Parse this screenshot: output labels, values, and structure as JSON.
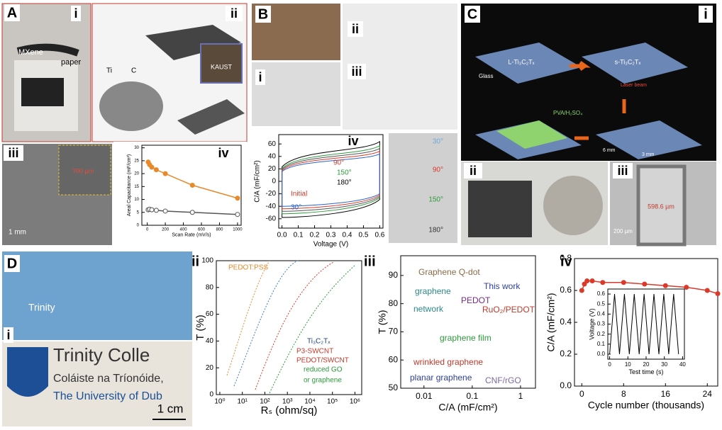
{
  "panels": {
    "A": {
      "label": "A",
      "i": "i",
      "ii": "ii",
      "iii": "iii",
      "iv": "iv",
      "mxene": "MXene",
      "paper": "paper",
      "ti": "Ti",
      "c": "C",
      "kaust": "KAUST",
      "scale": "1 mm",
      "sem": "700 µm",
      "chart": {
        "ylabel": "Areal Capacitance (mF/cm²)",
        "xlabel": "Scan Rate (mV/s)",
        "xlim": [
          -60,
          1040
        ],
        "ylim": [
          0,
          31
        ],
        "xticks": [
          0,
          200,
          400,
          600,
          800,
          1000
        ],
        "yticks": [
          0,
          5,
          10,
          15,
          20,
          25,
          30
        ],
        "series": [
          {
            "color": "#e8892a",
            "x": [
              10,
              25,
              50,
              100,
              200,
              500,
              1000
            ],
            "values": [
              24.5,
              23.5,
              22.5,
              21.5,
              20,
              15.5,
              10.5
            ]
          },
          {
            "color": "#555555",
            "x": [
              10,
              25,
              50,
              100,
              200,
              500,
              1000
            ],
            "values": [
              6,
              6.2,
              6,
              5.8,
              5.5,
              5,
              4.2
            ]
          }
        ]
      }
    },
    "B": {
      "label": "B",
      "i": "i",
      "ii": "ii",
      "iii": "iii",
      "iv": "iv",
      "bends": [
        "30°",
        "90°",
        "150°",
        "180°"
      ],
      "chart": {
        "ylabel": "C/A (mF/cm²)",
        "xlabel": "Voltage (V)",
        "xlim": [
          -0.02,
          0.62
        ],
        "ylim": [
          -75,
          75
        ],
        "xticks": [
          {
            "value": 0,
            "label": "0.0"
          },
          {
            "value": 0.1,
            "label": "0.1"
          },
          {
            "value": 0.2,
            "label": "0.2"
          },
          {
            "value": 0.3,
            "label": "0.3"
          },
          {
            "value": 0.4,
            "label": "0.4"
          },
          {
            "value": 0.5,
            "label": "0.5"
          },
          {
            "value": 0.6,
            "label": "0.6"
          }
        ],
        "yticks": [
          -60,
          -40,
          -20,
          0,
          20,
          40,
          60
        ],
        "legend": [
          "90°",
          "150°",
          "180°",
          "Initial",
          "30°"
        ]
      }
    },
    "C": {
      "label": "C",
      "i": "i",
      "ii": "ii",
      "iii": "iii",
      "l": "L-Ti₃C₂Tₓ",
      "s": "s-Ti₃C₂Tₓ",
      "glass": "Glass",
      "pva": "PVA/H₂SO₄",
      "laser": "Laser beam",
      "w": "6 mm",
      "h": "3 mm",
      "scale": "200 µm",
      "gap": "598.6 µm"
    },
    "D": {
      "label": "D",
      "i": "i",
      "trinity": "Trinity",
      "line1": "Trinity Colle",
      "line2": "Coláiste na Tríonóide,",
      "line3": "The University of Dub",
      "scale": "1 cm",
      "ii": {
        "label": "ii",
        "ylabel": "T (%)",
        "xlabel": "Rₛ (ohm/sq)",
        "xlim": [
          0.7,
          2000000
        ],
        "ylim": [
          0,
          100
        ],
        "xlog": true,
        "xticks": [
          {
            "value": 1,
            "label": "10⁰"
          },
          {
            "value": 10,
            "label": "10¹"
          },
          {
            "value": 100,
            "label": "10²"
          },
          {
            "value": 1000,
            "label": "10³"
          },
          {
            "value": 10000,
            "label": "10⁴"
          },
          {
            "value": 100000,
            "label": "10⁵"
          },
          {
            "value": 1000000,
            "label": "10⁶"
          }
        ],
        "yticks": [
          0,
          20,
          40,
          60,
          80,
          100
        ],
        "legend": [
          "PEDOT:PSS",
          "Ti₃C₂Tₓ",
          "P3-SWCNT",
          "PEDOT/SWCNT",
          "reduced GO",
          "or graphene"
        ]
      },
      "iii": {
        "label": "iii",
        "ylabel": "T (%)",
        "xlabel": "C/A (mF/cm²)",
        "xlim": [
          0.0033,
          2.04
        ],
        "ylim": [
          50,
          97
        ],
        "xlog": true,
        "xticks": [
          0.01,
          0.1,
          1
        ],
        "yticks": [
          50,
          60,
          70,
          80,
          90
        ],
        "notes": [
          "Graphene Q-dot",
          "graphene",
          "network",
          "This work",
          "PEDOT",
          "RuO₂/PEDOT",
          "graphene film",
          "wrinkled graphene",
          "planar graphene",
          "CNF/rGO"
        ]
      },
      "iv": {
        "label": "iv",
        "ylabel": "C/A (mF/cm²)",
        "xlabel": "Cycle number (thousands)",
        "xlim": [
          -1.4,
          26
        ],
        "ylim": [
          0,
          0.8
        ],
        "xticks": [
          0,
          8,
          16,
          24
        ],
        "yticks": [
          {
            "value": 0,
            "label": "0.0"
          },
          {
            "value": 0.2,
            "label": "0.2"
          },
          {
            "value": 0.4,
            "label": "0.4"
          },
          {
            "value": 0.6,
            "label": "0.6"
          },
          {
            "value": 0.8,
            "label": "0.8"
          }
        ],
        "series": [
          {
            "color": "#d93a2a",
            "x": [
              0,
              0.5,
              1,
              2,
              4,
              8,
              12,
              16,
              20,
              24,
              26
            ],
            "values": [
              0.6,
              0.64,
              0.66,
              0.66,
              0.65,
              0.65,
              0.64,
              0.63,
              0.62,
              0.6,
              0.58
            ]
          }
        ],
        "inset": {
          "ylabel": "Voltage (V)",
          "xlabel": "Test time (s)",
          "xlim": [
            -1,
            41
          ],
          "ylim": [
            -0.05,
            0.65
          ],
          "xticks": [
            0,
            10,
            20,
            30,
            40
          ],
          "yticks": [
            {
              "value": 0,
              "label": "0.0"
            },
            {
              "value": 0.1,
              "label": "0.1"
            },
            {
              "value": 0.2,
              "label": "0.2"
            },
            {
              "value": 0.3,
              "label": "0.3"
            },
            {
              "value": 0.4,
              "label": "0.4"
            },
            {
              "value": 0.5,
              "label": "0.5"
            },
            {
              "value": 0.6,
              "label": "0.6"
            }
          ]
        }
      }
    }
  }
}
